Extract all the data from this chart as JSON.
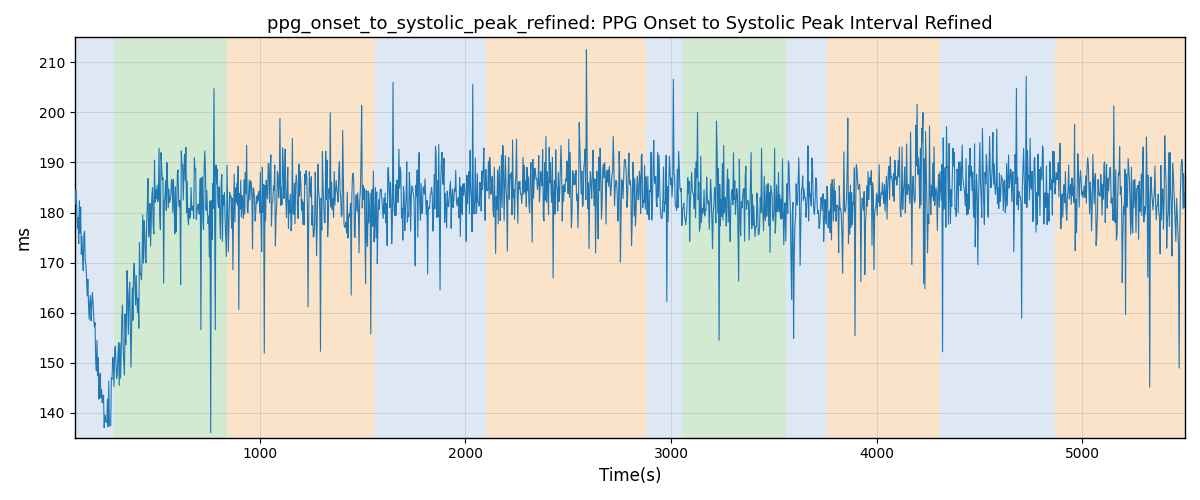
{
  "title": "ppg_onset_to_systolic_peak_refined: PPG Onset to Systolic Peak Interval Refined",
  "xlabel": "Time(s)",
  "ylabel": "ms",
  "ylim": [
    135,
    215
  ],
  "xlim": [
    100,
    5500
  ],
  "line_color": "#1f77b4",
  "line_width": 0.8,
  "background_color": "#ffffff",
  "grid_color": "#b0b0b0",
  "grid_alpha": 0.5,
  "regions": [
    {
      "xmin": 100,
      "xmax": 290,
      "color": "#aec6e8",
      "alpha": 0.4
    },
    {
      "xmin": 290,
      "xmax": 840,
      "color": "#90c990",
      "alpha": 0.4
    },
    {
      "xmin": 840,
      "xmax": 1560,
      "color": "#f8c895",
      "alpha": 0.5
    },
    {
      "xmin": 1560,
      "xmax": 1980,
      "color": "#aec6e8",
      "alpha": 0.4
    },
    {
      "xmin": 1980,
      "xmax": 2100,
      "color": "#aec6e8",
      "alpha": 0.4
    },
    {
      "xmin": 2100,
      "xmax": 2880,
      "color": "#f8c895",
      "alpha": 0.5
    },
    {
      "xmin": 2880,
      "xmax": 3060,
      "color": "#aec6e8",
      "alpha": 0.4
    },
    {
      "xmin": 3060,
      "xmax": 3560,
      "color": "#90c990",
      "alpha": 0.4
    },
    {
      "xmin": 3560,
      "xmax": 3760,
      "color": "#aec6e8",
      "alpha": 0.4
    },
    {
      "xmin": 3760,
      "xmax": 4310,
      "color": "#f8c895",
      "alpha": 0.5
    },
    {
      "xmin": 4310,
      "xmax": 4870,
      "color": "#aec6e8",
      "alpha": 0.4
    },
    {
      "xmin": 4870,
      "xmax": 5500,
      "color": "#f8c895",
      "alpha": 0.5
    }
  ],
  "seed": 12345,
  "n_points": 1700,
  "title_fontsize": 13
}
